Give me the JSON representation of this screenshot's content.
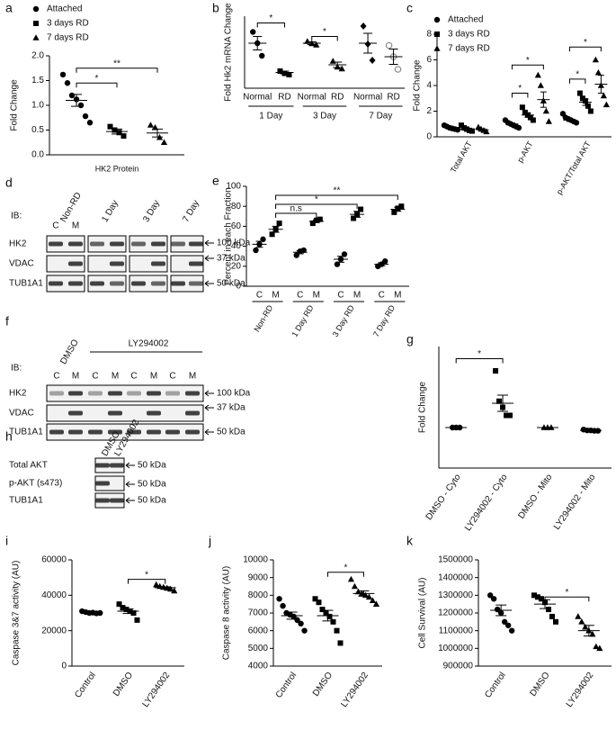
{
  "chart_data": [
    {
      "type": "dot",
      "panel": "a",
      "ylabel": "Fold Change",
      "xlabel": "HK2 Protein",
      "ylim": [
        0,
        2
      ],
      "yticks": [
        {
          "value": 0,
          "label": "0.0"
        },
        0.5,
        {
          "value": 1,
          "label": "1.0"
        },
        1.5,
        {
          "value": 2,
          "label": "2.0"
        }
      ],
      "legend": [
        {
          "name": "Attached",
          "marker": "circle"
        },
        {
          "name": "3 days RD",
          "marker": "square"
        },
        {
          "name": "7 days RD",
          "marker": "triangle"
        }
      ],
      "groups": [
        {
          "marker": "circle",
          "points": [
            1.62,
            1.45,
            1.2,
            1.12,
            1.0,
            0.78,
            0.65
          ],
          "mean": 1.1,
          "sem": 0.12
        },
        {
          "marker": "square",
          "points": [
            0.57,
            0.5,
            0.45,
            0.38
          ],
          "mean": 0.47,
          "sem": 0.05
        },
        {
          "marker": "triangle",
          "points": [
            0.6,
            0.55,
            0.35,
            0.25
          ],
          "mean": 0.44,
          "sem": 0.08
        }
      ],
      "annotations": [
        "*",
        "**"
      ]
    },
    {
      "type": "dot",
      "panel": "b",
      "ylabel": "Fold Hk2 mRNA Change",
      "ylim": [
        0,
        1.6
      ],
      "labels": [
        "Normal",
        "RD",
        "Normal",
        "RD",
        "Normal",
        "RD"
      ],
      "clusters": [
        "1 Day",
        "3 Day",
        "7 Day"
      ],
      "groups": [
        {
          "marker": "circle",
          "points": [
            1.25,
            1.0,
            0.72
          ],
          "mean": 1.0,
          "sem": 0.15
        },
        {
          "marker": "square",
          "points": [
            0.38,
            0.33,
            0.3
          ],
          "mean": 0.35,
          "sem": 0.03
        },
        {
          "marker": "triangle",
          "points": [
            1.04,
            0.99,
            0.96
          ],
          "mean": 1.0,
          "sem": 0.03
        },
        {
          "marker": "triangle",
          "points": [
            0.6,
            0.47,
            0.43
          ],
          "mean": 0.52,
          "sem": 0.06
        },
        {
          "marker": "diamond",
          "points": [
            1.38,
            0.98,
            0.62
          ],
          "mean": 1.0,
          "sem": 0.22
        },
        {
          "marker": "open-circle",
          "points": [
            0.95,
            0.7,
            0.42
          ],
          "mean": 0.7,
          "sem": 0.17
        }
      ],
      "annotations": [
        "*",
        "*"
      ]
    },
    {
      "type": "dot",
      "panel": "c",
      "ylabel": "Fold Change",
      "ylim": [
        0,
        8
      ],
      "yticks": [
        0,
        2,
        4,
        6,
        8
      ],
      "legend": [
        {
          "name": "Attached",
          "marker": "circle"
        },
        {
          "name": "3 days RD",
          "marker": "square"
        },
        {
          "name": "7 days RD",
          "marker": "triangle"
        }
      ],
      "clusters": [
        "Total AKT",
        "p-AKT",
        "p-AKT/Total AKT"
      ],
      "groups": [
        {
          "marker": "circle",
          "points": [
            0.9,
            0.8,
            0.7,
            0.65,
            0.6,
            0.55
          ],
          "mean": 0.7,
          "sem": 0.05
        },
        {
          "marker": "square",
          "points": [
            0.9,
            0.7,
            0.6,
            0.5,
            0.45
          ],
          "mean": 0.6,
          "sem": 0.08
        },
        {
          "marker": "triangle",
          "points": [
            0.75,
            0.6,
            0.5,
            0.4
          ],
          "mean": 0.55,
          "sem": 0.07
        },
        {
          "marker": "circle",
          "points": [
            1.3,
            1.1,
            1.0,
            0.9,
            0.8,
            0.7
          ],
          "mean": 1.0,
          "sem": 0.08
        },
        {
          "marker": "square",
          "points": [
            2.3,
            1.9,
            1.7,
            1.5,
            1.3
          ],
          "mean": 1.7,
          "sem": 0.17
        },
        {
          "marker": "triangle",
          "points": [
            4.8,
            4.0,
            2.8,
            2.0,
            1.2
          ],
          "mean": 2.9,
          "sem": 0.6
        },
        {
          "marker": "circle",
          "points": [
            1.8,
            1.5,
            1.4,
            1.3,
            1.2,
            1.1
          ],
          "mean": 1.3,
          "sem": 0.1
        },
        {
          "marker": "square",
          "points": [
            3.4,
            3.0,
            2.8,
            2.4,
            2.0
          ],
          "mean": 2.7,
          "sem": 0.25
        },
        {
          "marker": "triangle",
          "points": [
            6.0,
            5.0,
            4.0,
            3.2,
            2.5
          ],
          "mean": 4.1,
          "sem": 0.7
        }
      ],
      "annotations": [
        "*",
        "*",
        "*",
        "*"
      ]
    },
    {
      "type": "dot",
      "panel": "e",
      "ylabel": "Percent in each Fraction",
      "ylim": [
        0,
        100
      ],
      "yticks": [
        0,
        20,
        40,
        60,
        80,
        100
      ],
      "labels": [
        "C",
        "M",
        "C",
        "M",
        "C",
        "M",
        "C",
        "M"
      ],
      "clusters": [
        "Non-RD",
        "1 Day RD",
        "3 Day RD",
        "7 Day RD"
      ],
      "groups": [
        {
          "marker": "circle",
          "points": [
            36,
            42,
            47
          ],
          "mean": 42,
          "sem": 3
        },
        {
          "marker": "square",
          "points": [
            52,
            57,
            63
          ],
          "mean": 57,
          "sem": 3
        },
        {
          "marker": "circle",
          "points": [
            31,
            35,
            36
          ],
          "mean": 34,
          "sem": 1.5
        },
        {
          "marker": "square",
          "points": [
            63,
            66,
            67
          ],
          "mean": 65,
          "sem": 1.2
        },
        {
          "marker": "circle",
          "points": [
            22,
            27,
            32
          ],
          "mean": 27,
          "sem": 3
        },
        {
          "marker": "square",
          "points": [
            68,
            72,
            77
          ],
          "mean": 72,
          "sem": 3
        },
        {
          "marker": "circle",
          "points": [
            20,
            22,
            25
          ],
          "mean": 22,
          "sem": 1.5
        },
        {
          "marker": "square",
          "points": [
            74,
            78,
            80
          ],
          "mean": 77,
          "sem": 2
        }
      ],
      "annotations": [
        "n.s",
        "*",
        "**"
      ]
    },
    {
      "type": "dot",
      "panel": "g",
      "ylabel": "Fold Change",
      "ylim": [
        0,
        3
      ],
      "labels": [
        "DMSO - Cyto",
        "LY294002 - Cyto",
        "DMSO - Mito",
        "LY294002 - Mito"
      ],
      "groups": [
        {
          "marker": "circle",
          "points": [
            1,
            1,
            1
          ],
          "mean": 1,
          "sem": 0
        },
        {
          "marker": "square",
          "points": [
            2.4,
            1.65,
            1.5,
            1.3,
            1.3
          ],
          "mean": 1.6,
          "sem": 0.2
        },
        {
          "marker": "triangle",
          "points": [
            1,
            1,
            1
          ],
          "mean": 1,
          "sem": 0
        },
        {
          "marker": "circle",
          "points": [
            0.95,
            0.93,
            0.93,
            0.92,
            0.92
          ],
          "mean": 0.93,
          "sem": 0.01
        }
      ],
      "annotations": [
        "*"
      ]
    },
    {
      "type": "dot",
      "panel": "i",
      "ylabel": "Caspase 3&7 activity (AU)",
      "ylim": [
        0,
        60000
      ],
      "yticks": [
        0,
        20000,
        40000,
        60000
      ],
      "labels": [
        "Control",
        "DMSO",
        "LY294002"
      ],
      "groups": [
        {
          "marker": "circle",
          "points": [
            31000,
            30500,
            30000,
            30200,
            29800,
            30000
          ],
          "mean": 30200,
          "sem": 300
        },
        {
          "marker": "square",
          "points": [
            35000,
            33000,
            32000,
            31000,
            30000,
            26000
          ],
          "mean": 31000,
          "sem": 1300
        },
        {
          "marker": "triangle",
          "points": [
            46000,
            45000,
            44500,
            44000,
            43500,
            42500
          ],
          "mean": 44300,
          "sem": 500
        }
      ],
      "annotations": [
        "*"
      ]
    },
    {
      "type": "dot",
      "panel": "j",
      "ylabel": "Caspase 8 activity (AU)",
      "ylim": [
        4000,
        10000
      ],
      "yticks": [
        4000,
        5000,
        6000,
        7000,
        8000,
        9000,
        10000
      ],
      "labels": [
        "Control",
        "DMSO",
        "LY294002"
      ],
      "groups": [
        {
          "marker": "circle",
          "points": [
            7800,
            7400,
            7000,
            6900,
            6800,
            6600,
            6400,
            6000
          ],
          "mean": 6850,
          "sem": 200
        },
        {
          "marker": "square",
          "points": [
            7800,
            7600,
            7200,
            7000,
            6800,
            6500,
            6000,
            5300
          ],
          "mean": 6850,
          "sem": 300
        },
        {
          "marker": "triangle",
          "points": [
            8900,
            8500,
            8200,
            8100,
            8000,
            7900,
            7700,
            7500
          ],
          "mean": 8100,
          "sem": 150
        }
      ],
      "annotations": [
        "*"
      ]
    },
    {
      "type": "dot",
      "panel": "k",
      "ylabel": "Cell Survival (AU)",
      "ylim": [
        900000,
        1500000
      ],
      "yticks": [
        900000,
        1000000,
        1100000,
        1200000,
        1300000,
        1400000,
        1500000
      ],
      "labels": [
        "Control",
        "DMSO",
        "LY294002"
      ],
      "groups": [
        {
          "marker": "circle",
          "points": [
            1300000,
            1280000,
            1220000,
            1200000,
            1150000,
            1130000,
            1100000
          ],
          "mean": 1215000,
          "sem": 30000
        },
        {
          "marker": "square",
          "points": [
            1300000,
            1290000,
            1280000,
            1260000,
            1220000,
            1180000,
            1150000
          ],
          "mean": 1250000,
          "sem": 25000
        },
        {
          "marker": "triangle",
          "points": [
            1180000,
            1150000,
            1120000,
            1100000,
            1080000,
            1010000,
            1000000
          ],
          "mean": 1100000,
          "sem": 30000
        }
      ],
      "annotations": [
        "*"
      ]
    }
  ],
  "blots": [
    {
      "panel": "d",
      "ib": "IB:",
      "lanes": [
        "Non-RD",
        "1 Day",
        "3 Day",
        "7 Day"
      ],
      "sublanes": [
        "C",
        "M"
      ],
      "rows": [
        "HK2",
        "VDAC",
        "TUB1A1"
      ],
      "sizes": [
        "100 kDa",
        "37 kDa",
        "50 kDa"
      ]
    },
    {
      "panel": "f",
      "ib": "IB:",
      "lanes": [
        "DMSO",
        "LY294002"
      ],
      "sublanes": [
        "C",
        "M",
        "C",
        "M",
        "C",
        "M",
        "C",
        "M"
      ],
      "rows": [
        "HK2",
        "VDAC",
        "TUB1A1"
      ],
      "sizes": [
        "100 kDa",
        "37 kDa",
        "50 kDa"
      ]
    },
    {
      "panel": "h",
      "lanes": [
        "DMSO",
        "LY294002"
      ],
      "rows": [
        "Total AKT",
        "p-AKT (s473)",
        "TUB1A1"
      ],
      "sizes": [
        "50 kDa",
        "50 kDa",
        "50 kDa"
      ]
    }
  ]
}
